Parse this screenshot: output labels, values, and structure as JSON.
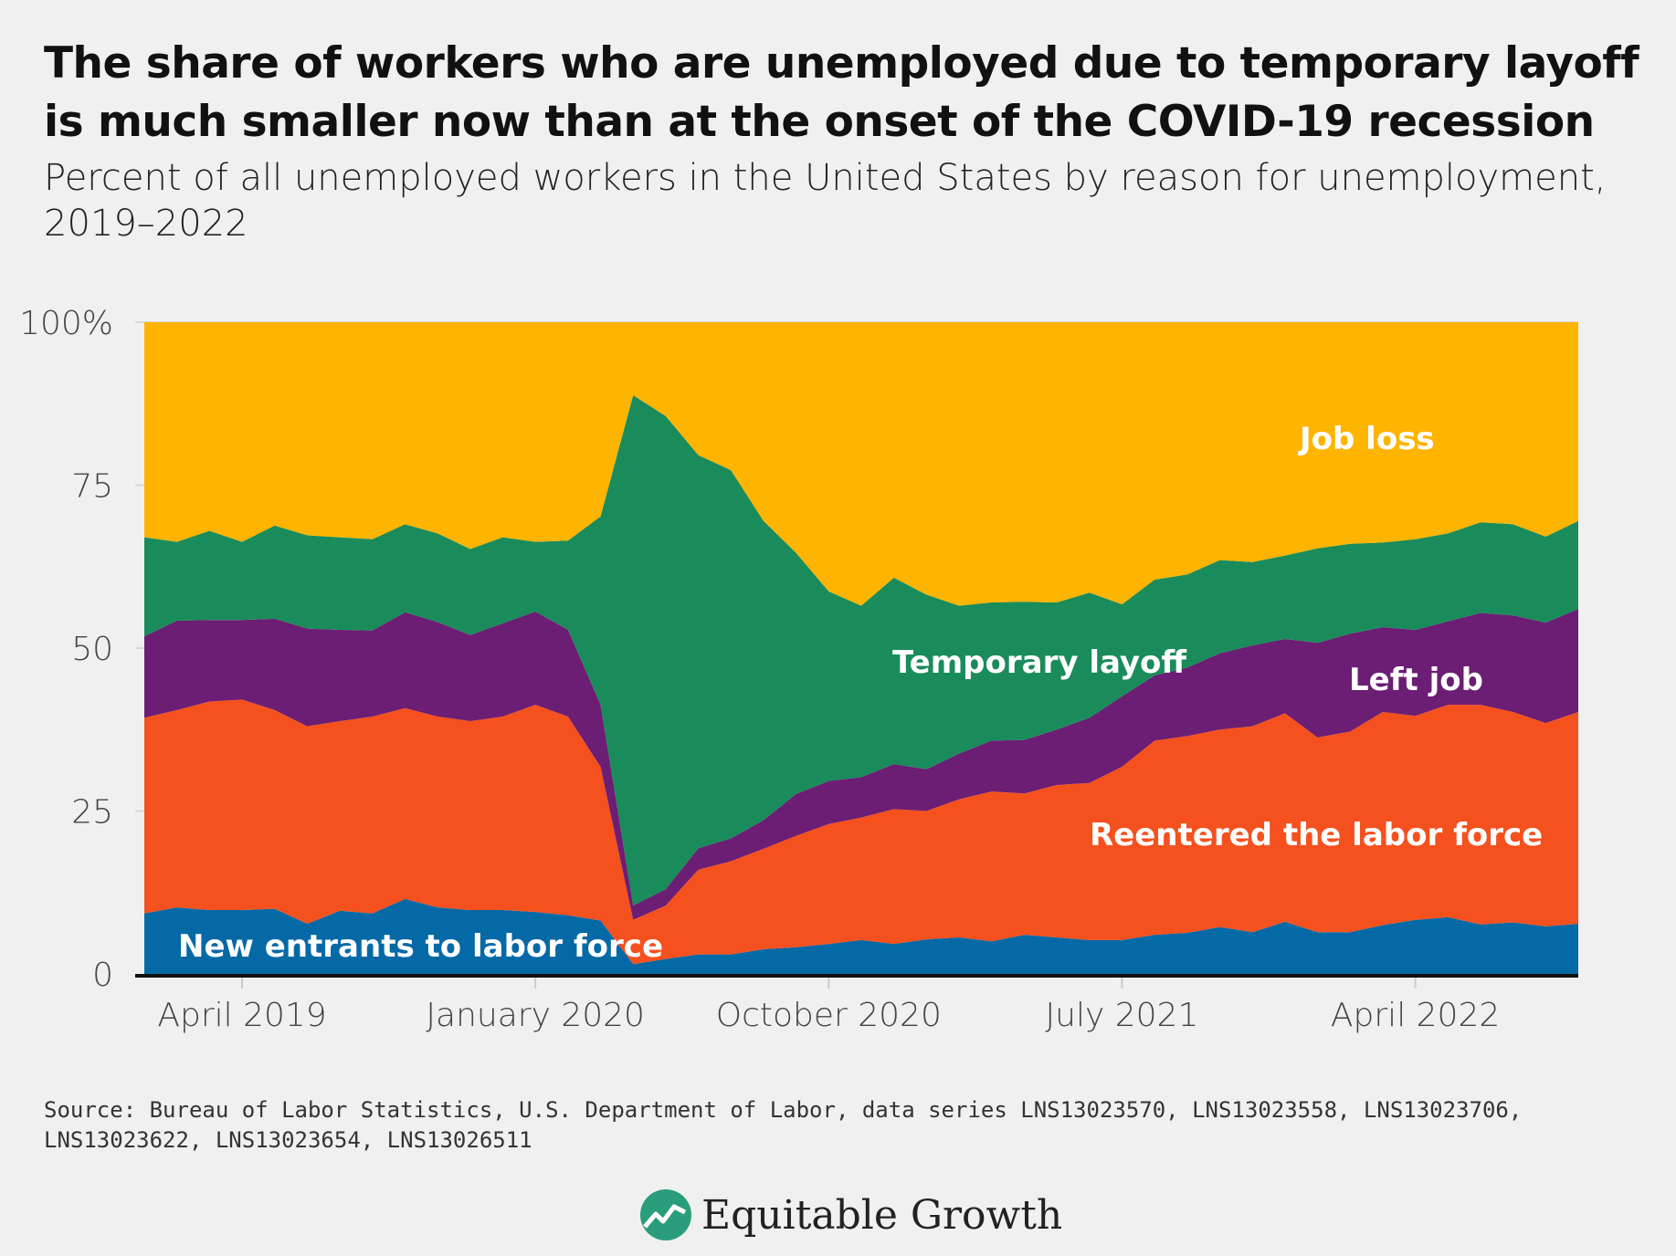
{
  "title": "The share of workers who are unemployed due to temporary layoff is much smaller now than at the onset of the COVID-19 recession",
  "subtitle": "Percent of all unemployed workers in the United States by reason for unemployment, 2019–2022",
  "source": "Source: Bureau of Labor Statistics, U.S. Department of Labor, data series LNS13023570, LNS13023558, LNS13023706, LNS13023622, LNS13023654, LNS13026511",
  "logo_text": "Equitable Growth",
  "colors": {
    "background": "#f0f0f0",
    "new_entrants": "#0569a6",
    "reentered": "#f4511e",
    "left_job": "#6c1d74",
    "temporary_layoff": "#1a8c5b",
    "job_loss": "#ffb400"
  },
  "chart_data": {
    "type": "area",
    "stacked": true,
    "title": "",
    "xlabel": "",
    "ylabel": "",
    "ylim": [
      0,
      100
    ],
    "grid": true,
    "y_ticks": [
      {
        "value": 0,
        "label": "0"
      },
      {
        "value": 25,
        "label": "25"
      },
      {
        "value": 50,
        "label": "50"
      },
      {
        "value": 75,
        "label": "75"
      },
      {
        "value": 100,
        "label": "100%"
      }
    ],
    "x_ticks": [
      {
        "value": "2019-04",
        "label": "April 2019"
      },
      {
        "value": "2020-01",
        "label": "January 2020"
      },
      {
        "value": "2020-10",
        "label": "October 2020"
      },
      {
        "value": "2021-07",
        "label": "July 2021"
      },
      {
        "value": "2022-04",
        "label": "April 2022"
      }
    ],
    "x": [
      "2019-01",
      "2019-02",
      "2019-03",
      "2019-04",
      "2019-05",
      "2019-06",
      "2019-07",
      "2019-08",
      "2019-09",
      "2019-10",
      "2019-11",
      "2019-12",
      "2020-01",
      "2020-02",
      "2020-03",
      "2020-04",
      "2020-05",
      "2020-06",
      "2020-07",
      "2020-08",
      "2020-09",
      "2020-10",
      "2020-11",
      "2020-12",
      "2021-01",
      "2021-02",
      "2021-03",
      "2021-04",
      "2021-05",
      "2021-06",
      "2021-07",
      "2021-08",
      "2021-09",
      "2021-10",
      "2021-11",
      "2021-12",
      "2022-01",
      "2022-02",
      "2022-03",
      "2022-04",
      "2022-05",
      "2022-06",
      "2022-07",
      "2022-08",
      "2022-09"
    ],
    "series": [
      {
        "name": "New entrants to labor force",
        "color": "#0569a6",
        "values": [
          9.3,
          10.2,
          9.8,
          9.8,
          10.0,
          7.7,
          9.7,
          9.3,
          11.5,
          10.2,
          9.8,
          9.8,
          9.5,
          9.0,
          8.2,
          1.5,
          2.3,
          3.0,
          3.0,
          3.8,
          4.1,
          4.6,
          5.2,
          4.6,
          5.3,
          5.6,
          5.0,
          6.0,
          5.6,
          5.2,
          5.2,
          6.0,
          6.3,
          7.2,
          6.4,
          8.0,
          6.4,
          6.4,
          7.5,
          8.3,
          8.7,
          7.6,
          7.9,
          7.3,
          7.7
        ]
      },
      {
        "name": "Reentered the labor force",
        "color": "#f4511e",
        "values": [
          30.0,
          30.3,
          32.0,
          32.3,
          30.5,
          30.3,
          29.1,
          30.2,
          29.3,
          29.3,
          29.0,
          29.7,
          31.8,
          30.5,
          23.6,
          6.8,
          8.2,
          13.0,
          14.3,
          15.4,
          17.1,
          18.4,
          18.8,
          20.7,
          19.7,
          21.2,
          23.0,
          21.7,
          23.4,
          24.1,
          26.6,
          29.8,
          30.2,
          30.3,
          31.6,
          32.0,
          29.9,
          30.8,
          32.7,
          31.3,
          32.6,
          33.7,
          32.3,
          31.2,
          32.5
        ]
      },
      {
        "name": "Left job",
        "color": "#6c1d74",
        "values": [
          12.5,
          13.7,
          12.5,
          12.2,
          14.0,
          15.0,
          14.0,
          13.2,
          14.7,
          14.5,
          13.2,
          14.3,
          14.3,
          13.3,
          9.5,
          2.2,
          2.5,
          3.3,
          3.5,
          4.4,
          6.4,
          6.6,
          6.2,
          6.9,
          6.4,
          7.0,
          7.8,
          8.2,
          8.5,
          10.0,
          10.8,
          10.0,
          10.5,
          11.7,
          12.4,
          11.4,
          14.5,
          15.0,
          13.0,
          13.2,
          12.8,
          14.1,
          14.8,
          15.4,
          15.8
        ]
      },
      {
        "name": "Temporary layoff",
        "color": "#1a8c5b",
        "values": [
          15.2,
          12.1,
          13.7,
          12.0,
          14.3,
          14.3,
          14.2,
          14.0,
          13.5,
          13.6,
          13.2,
          13.2,
          10.7,
          13.7,
          28.9,
          78.3,
          72.6,
          60.3,
          56.5,
          45.9,
          37.0,
          29.1,
          26.3,
          28.6,
          26.8,
          22.7,
          21.2,
          21.2,
          19.5,
          19.2,
          14.1,
          14.7,
          14.3,
          14.3,
          12.8,
          12.8,
          14.5,
          13.8,
          13.0,
          13.9,
          13.5,
          13.9,
          14.0,
          13.2,
          13.5
        ]
      },
      {
        "name": "Job loss",
        "color": "#ffb400",
        "values": [
          33.0,
          33.7,
          32.0,
          33.7,
          31.2,
          32.7,
          33.0,
          33.3,
          31.0,
          32.4,
          34.8,
          33.0,
          33.7,
          33.5,
          29.8,
          11.2,
          14.4,
          20.4,
          22.7,
          30.5,
          35.4,
          41.3,
          43.5,
          39.2,
          41.8,
          43.5,
          43.0,
          42.9,
          43.0,
          41.5,
          43.3,
          39.5,
          38.7,
          36.5,
          36.8,
          35.8,
          34.7,
          34.0,
          33.8,
          33.3,
          32.4,
          30.7,
          31.0,
          32.9,
          30.5
        ]
      }
    ],
    "legend": "inline labels"
  }
}
